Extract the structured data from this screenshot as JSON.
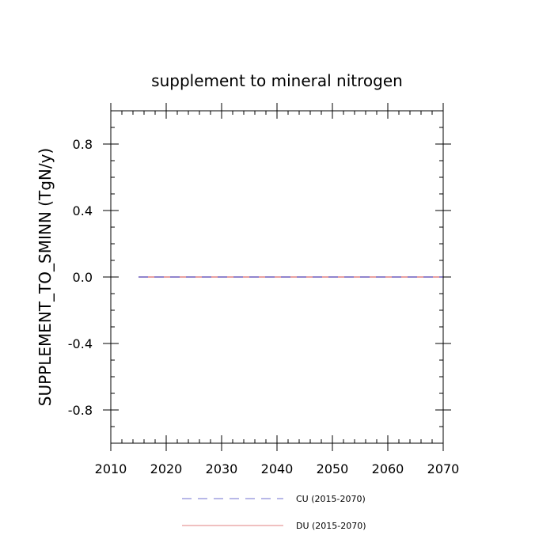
{
  "chart_data": {
    "type": "line",
    "title": "supplement to mineral nitrogen",
    "xlabel": "",
    "ylabel": "SUPPLEMENT_TO_SMINN  (TgN/y)",
    "xlim": [
      2010,
      2070
    ],
    "ylim": [
      -1.0,
      1.0
    ],
    "x_ticks": [
      2010,
      2020,
      2030,
      2040,
      2050,
      2060,
      2070
    ],
    "y_ticks": [
      -0.8,
      -0.4,
      0.0,
      0.4,
      0.8
    ],
    "x_minor_step": 2,
    "y_minor_step": 0.1,
    "grid": false,
    "legend_position": "bottom",
    "series": [
      {
        "name": "CU (2015-2070)",
        "color": "#7070d0",
        "style": "dashed",
        "x": [
          2015,
          2070
        ],
        "y": [
          0.0,
          0.0
        ]
      },
      {
        "name": "DU (2015-2070)",
        "color": "#e08080",
        "style": "solid",
        "x": [
          2015,
          2070
        ],
        "y": [
          0.0,
          0.0
        ]
      }
    ]
  }
}
